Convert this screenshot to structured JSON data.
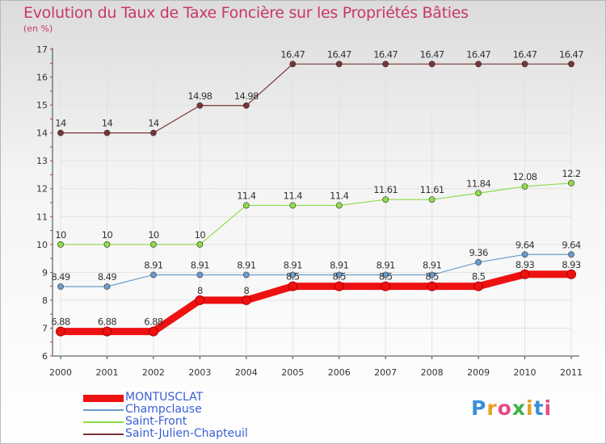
{
  "title": "Evolution du Taux de Taxe Foncière sur les Propriétés Bâties",
  "unit_label": "(en %)",
  "brand": "Proxiti",
  "colors": {
    "title": "#c8376a",
    "legend_text": "#3a5fd5",
    "axis": "#404040",
    "grid": "#e2e2e2",
    "tick_mark": "#d0345a"
  },
  "chart_data": {
    "type": "line",
    "title": "Evolution du Taux de Taxe Foncière sur les Propriétés Bâties",
    "ylabel": "(en %)",
    "xlabel": "",
    "ylim": [
      6,
      17
    ],
    "yticks": [
      "6",
      "7",
      "8",
      "9",
      "10",
      "11",
      "12",
      "13",
      "14",
      "15",
      "16",
      "17"
    ],
    "categories": [
      "2000",
      "2001",
      "2002",
      "2003",
      "2004",
      "2005",
      "2006",
      "2007",
      "2008",
      "2009",
      "2010",
      "2011"
    ],
    "grid": true,
    "legend_position": "bottom-left",
    "series": [
      {
        "name": "MONTUSCLAT",
        "color": "#ee1111",
        "values": [
          6.88,
          6.88,
          6.88,
          8,
          8,
          8.5,
          8.5,
          8.5,
          8.5,
          8.5,
          8.93,
          8.93
        ],
        "labels": [
          "6.88",
          "6.88",
          "6.88",
          "8",
          "8",
          "8.5",
          "8.5",
          "8.5",
          "8.5",
          "8.5",
          "8.93",
          "8.93"
        ]
      },
      {
        "name": "Champclause",
        "color": "#6a9ccc",
        "values": [
          8.49,
          8.49,
          8.91,
          8.91,
          8.91,
          8.91,
          8.91,
          8.91,
          8.91,
          9.36,
          9.64,
          9.64
        ],
        "labels": [
          "8.49",
          "8.49",
          "8.91",
          "8.91",
          "8.91",
          "8.91",
          "8.91",
          "8.91",
          "8.91",
          "9.36",
          "9.64",
          "9.64"
        ]
      },
      {
        "name": "Saint-Front",
        "color": "#8fdc4a",
        "values": [
          10,
          10,
          10,
          10,
          11.4,
          11.4,
          11.4,
          11.61,
          11.61,
          11.84,
          12.08,
          12.2
        ],
        "labels": [
          "10",
          "10",
          "10",
          "10",
          "11.4",
          "11.4",
          "11.4",
          "11.61",
          "11.61",
          "11.84",
          "12.08",
          "12.2"
        ]
      },
      {
        "name": "Saint-Julien-Chapteuil",
        "color": "#7a3434",
        "values": [
          14,
          14,
          14,
          14.98,
          14.98,
          16.47,
          16.47,
          16.47,
          16.47,
          16.47,
          16.47,
          16.47
        ],
        "labels": [
          "14",
          "14",
          "14",
          "14.98",
          "14.98",
          "16.47",
          "16.47",
          "16.47",
          "16.47",
          "16.47",
          "16.47",
          "16.47"
        ]
      }
    ]
  }
}
